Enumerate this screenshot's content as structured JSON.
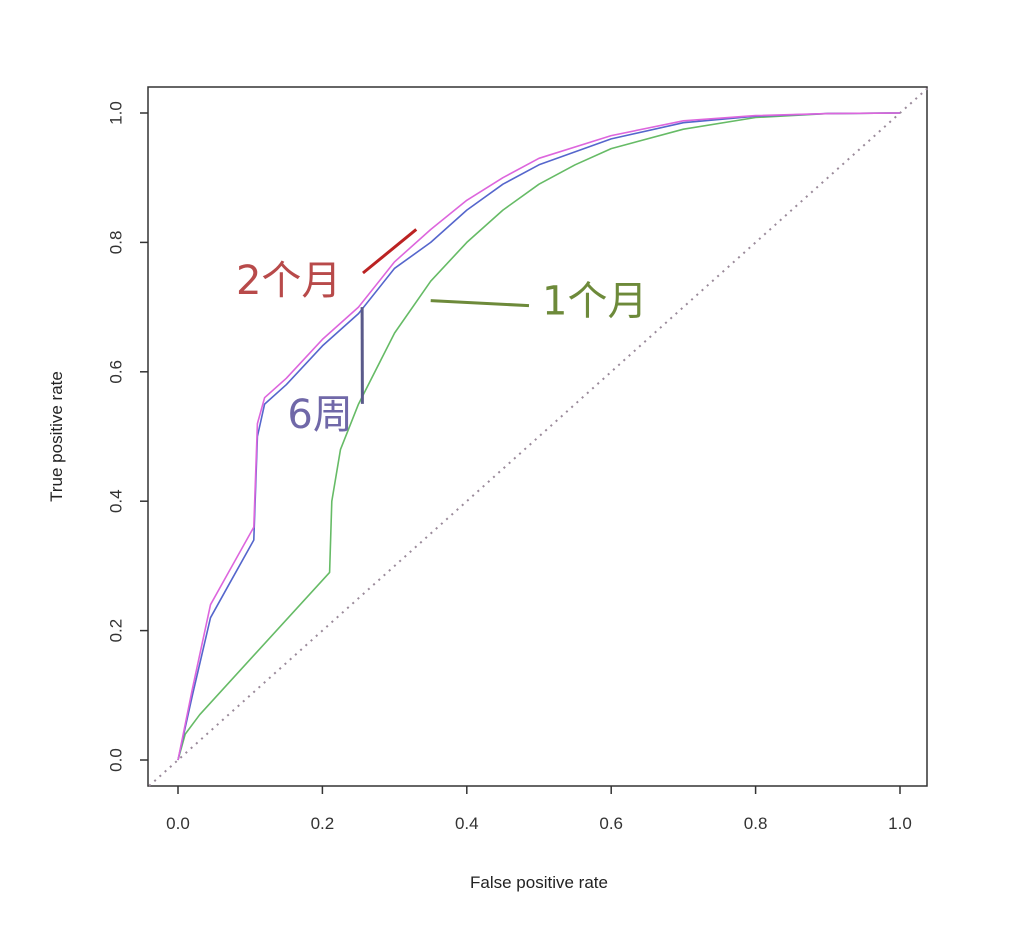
{
  "chart_data": {
    "type": "line",
    "title": "",
    "xlabel": "False positive rate",
    "ylabel": "True positive rate",
    "xlim": [
      -0.04,
      1.04
    ],
    "ylim": [
      -0.04,
      1.04
    ],
    "x_ticks": [
      "0.0",
      "0.2",
      "0.4",
      "0.6",
      "0.8",
      "1.0"
    ],
    "y_ticks": [
      "0.0",
      "0.2",
      "0.4",
      "0.6",
      "0.8",
      "1.0"
    ],
    "grid": false,
    "legend": "none",
    "reference_line": {
      "x": [
        0,
        1
      ],
      "y": [
        0,
        1
      ],
      "style": "dotted",
      "color": "#9a8a9a"
    },
    "series": [
      {
        "color": "#66bb66",
        "x": [
          0,
          0.01,
          0.03,
          0.21,
          0.213,
          0.225,
          0.25,
          0.3,
          0.35,
          0.4,
          0.45,
          0.5,
          0.55,
          0.6,
          0.7,
          0.8,
          0.9,
          1.0
        ],
        "y": [
          0,
          0.04,
          0.07,
          0.29,
          0.4,
          0.48,
          0.55,
          0.66,
          0.74,
          0.8,
          0.85,
          0.89,
          0.92,
          0.945,
          0.975,
          0.993,
          0.999,
          1.0
        ]
      },
      {
        "color": "#5566cc",
        "x": [
          0,
          0.02,
          0.045,
          0.07,
          0.105,
          0.11,
          0.12,
          0.15,
          0.2,
          0.25,
          0.3,
          0.35,
          0.4,
          0.45,
          0.5,
          0.6,
          0.7,
          0.8,
          0.9,
          1.0
        ],
        "y": [
          0,
          0.1,
          0.22,
          0.27,
          0.34,
          0.5,
          0.55,
          0.58,
          0.64,
          0.69,
          0.76,
          0.8,
          0.85,
          0.89,
          0.92,
          0.96,
          0.985,
          0.995,
          0.999,
          1.0
        ]
      },
      {
        "color": "#dd66dd",
        "x": [
          0,
          0.02,
          0.045,
          0.07,
          0.105,
          0.11,
          0.12,
          0.15,
          0.2,
          0.25,
          0.3,
          0.35,
          0.4,
          0.45,
          0.5,
          0.6,
          0.7,
          0.8,
          0.9,
          1.0
        ],
        "y": [
          0,
          0.11,
          0.24,
          0.29,
          0.36,
          0.52,
          0.56,
          0.59,
          0.65,
          0.7,
          0.77,
          0.82,
          0.865,
          0.9,
          0.93,
          0.965,
          0.988,
          0.996,
          0.999,
          1.0
        ]
      }
    ],
    "annotations": [
      {
        "text": "2个月",
        "color": "#b84a4a",
        "pointer_color": "#bb2222",
        "anchor": [
          0.33,
          0.82
        ],
        "label_at": [
          0.09,
          0.745
        ]
      },
      {
        "text": "1个月",
        "color": "#6d8a3a",
        "pointer_color": "#6d8a3a",
        "anchor": [
          0.35,
          0.71
        ],
        "label_at": [
          0.5,
          0.71
        ]
      },
      {
        "text": "6周",
        "color": "#7068a8",
        "pointer_color": "#5a5a8a",
        "anchor": [
          0.255,
          0.7
        ],
        "label_at": [
          0.2,
          0.535
        ]
      }
    ]
  }
}
